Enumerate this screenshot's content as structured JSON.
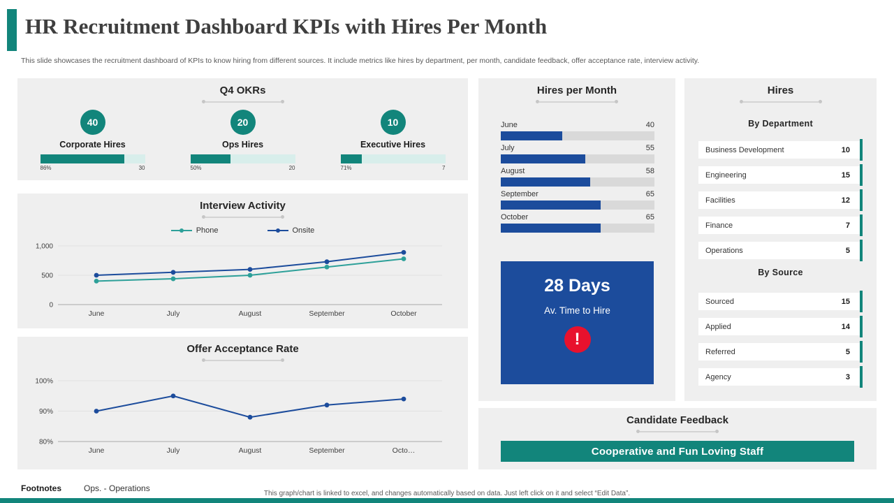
{
  "page": {
    "title": "HR Recruitment Dashboard KPIs with Hires Per Month",
    "subtitle": "This slide showcases the recruitment dashboard of KPIs to know hiring from different sources. It include metrics like hires by department, per month, candidate feedback, offer acceptance rate, interview activity.",
    "footnotes_label": "Footnotes",
    "footnotes_text": "Ops. - Operations",
    "footer_note": "This graph/chart is linked to excel, and changes automatically based on data. Just left click on it and select “Edit Data”."
  },
  "colors": {
    "teal": "#12857B",
    "teal_light": "#D8EEEB",
    "blue": "#1C4C9C",
    "red": "#E8112D",
    "panel": "#EFEFEF"
  },
  "okrs": {
    "title": "Q4 OKRs",
    "items": [
      {
        "circle_value": "40",
        "label": "Corporate Hires",
        "percent_label": "86%",
        "end_value": "30",
        "fill_percent": 80
      },
      {
        "circle_value": "20",
        "label": "Ops Hires",
        "percent_label": "50%",
        "end_value": "20",
        "fill_percent": 38
      },
      {
        "circle_value": "10",
        "label": "Executive Hires",
        "percent_label": "71%",
        "end_value": "7",
        "fill_percent": 20
      }
    ]
  },
  "time_to_hire": {
    "value": "28 Days",
    "label": "Av. Time to Hire"
  },
  "hires_panel": {
    "title": "Hires"
  },
  "candidate_feedback": {
    "title": "Candidate Feedback",
    "banner": "Cooperative and Fun Loving Staff"
  },
  "chart_data": [
    {
      "id": "interview_activity",
      "type": "line",
      "title": "Interview Activity",
      "categories": [
        "June",
        "July",
        "August",
        "September",
        "October"
      ],
      "series": [
        {
          "name": "Phone",
          "color": "#2DA099",
          "values": [
            400,
            440,
            500,
            640,
            780
          ]
        },
        {
          "name": "Onsite",
          "color": "#1C4C9C",
          "values": [
            500,
            550,
            600,
            730,
            890
          ]
        }
      ],
      "ylim": [
        0,
        1000
      ],
      "yticks": [
        "0",
        "500",
        "1,000"
      ],
      "ytick_values": [
        0,
        500,
        1000
      ],
      "legend_position": "top",
      "grid": true
    },
    {
      "id": "offer_acceptance_rate",
      "type": "line",
      "title": "Offer Acceptance Rate",
      "categories": [
        "June",
        "July",
        "August",
        "September",
        "October"
      ],
      "tick_labels": [
        "June",
        "July",
        "August",
        "September",
        "Octo…"
      ],
      "series": [
        {
          "name": "Offer Acceptance Rate",
          "color": "#1C4C9C",
          "values": [
            90,
            95,
            88,
            92,
            94
          ]
        }
      ],
      "ylim": [
        80,
        100
      ],
      "yticks": [
        "80%",
        "90%",
        "100%"
      ],
      "ytick_values": [
        80,
        90,
        100
      ],
      "legend_position": "none",
      "grid": true
    },
    {
      "id": "hires_per_month",
      "type": "bar",
      "title": "Hires per Month",
      "orientation": "horizontal",
      "categories": [
        "June",
        "July",
        "August",
        "September",
        "October"
      ],
      "values": [
        40,
        55,
        58,
        65,
        65
      ],
      "xlim": [
        0,
        100
      ]
    },
    {
      "id": "hires_by_department",
      "type": "table",
      "title": "Hires",
      "subtitle": "By Department",
      "categories": [
        "Business Development",
        "Engineering",
        "Facilities",
        "Finance",
        "Operations"
      ],
      "values": [
        10,
        15,
        12,
        7,
        5
      ]
    },
    {
      "id": "hires_by_source",
      "type": "table",
      "title": "Hires",
      "subtitle": "By Source",
      "categories": [
        "Sourced",
        "Applied",
        "Referred",
        "Agency"
      ],
      "values": [
        15,
        14,
        5,
        3
      ]
    }
  ]
}
